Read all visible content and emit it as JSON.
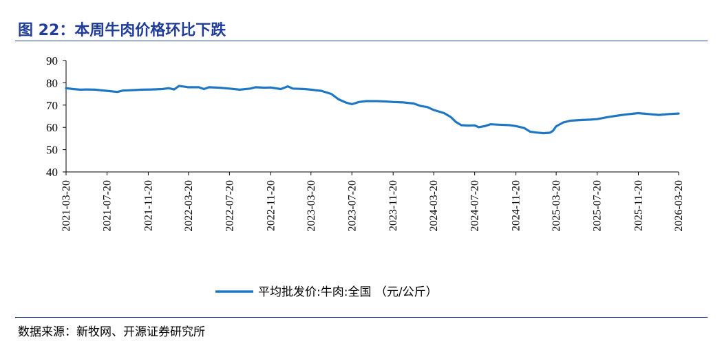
{
  "figure": {
    "title": "图 22：本周牛肉价格环比下跌",
    "source": "数据来源：新牧网、开源证券研究所"
  },
  "chart_data": {
    "type": "line",
    "title": "",
    "xlabel": "",
    "ylabel": "",
    "ylim": [
      40,
      90
    ],
    "yticks": [
      40,
      50,
      60,
      70,
      80,
      90
    ],
    "xlim": [
      "2021-03-20",
      "2026-03-20"
    ],
    "xticks": [
      "2021-03-20",
      "2021-07-20",
      "2021-11-20",
      "2022-03-20",
      "2022-07-20",
      "2022-11-20",
      "2023-03-20",
      "2023-07-20",
      "2023-11-20",
      "2024-03-20",
      "2024-07-20",
      "2024-11-20",
      "2025-03-20",
      "2025-07-20",
      "2025-11-20",
      "2026-03-20"
    ],
    "grid": false,
    "legend_position": "bottom",
    "color": "#1f77c4",
    "series": [
      {
        "name": "平均批发价:牛肉:全国  （元/公斤）",
        "points": [
          [
            "2021-03-20",
            77.6
          ],
          [
            "2021-04-10",
            77.2
          ],
          [
            "2021-05-01",
            76.9
          ],
          [
            "2021-05-20",
            77.0
          ],
          [
            "2021-06-15",
            76.9
          ],
          [
            "2021-07-20",
            76.4
          ],
          [
            "2021-08-20",
            75.9
          ],
          [
            "2021-09-05",
            76.5
          ],
          [
            "2021-10-01",
            76.7
          ],
          [
            "2021-11-01",
            76.9
          ],
          [
            "2021-12-01",
            77.0
          ],
          [
            "2022-01-01",
            77.2
          ],
          [
            "2022-01-20",
            77.6
          ],
          [
            "2022-02-05",
            77.0
          ],
          [
            "2022-02-20",
            78.6
          ],
          [
            "2022-03-20",
            78.0
          ],
          [
            "2022-04-20",
            78.0
          ],
          [
            "2022-05-05",
            77.2
          ],
          [
            "2022-05-20",
            78.0
          ],
          [
            "2022-06-20",
            77.8
          ],
          [
            "2022-07-20",
            77.4
          ],
          [
            "2022-08-20",
            76.9
          ],
          [
            "2022-09-20",
            77.4
          ],
          [
            "2022-10-05",
            78.0
          ],
          [
            "2022-11-01",
            77.8
          ],
          [
            "2022-11-20",
            77.9
          ],
          [
            "2022-12-20",
            77.2
          ],
          [
            "2023-01-10",
            78.4
          ],
          [
            "2023-01-25",
            77.4
          ],
          [
            "2023-03-01",
            77.2
          ],
          [
            "2023-03-20",
            76.9
          ],
          [
            "2023-04-20",
            76.4
          ],
          [
            "2023-05-20",
            75.0
          ],
          [
            "2023-06-10",
            72.6
          ],
          [
            "2023-07-01",
            71.2
          ],
          [
            "2023-07-20",
            70.4
          ],
          [
            "2023-08-10",
            71.4
          ],
          [
            "2023-09-01",
            71.8
          ],
          [
            "2023-10-01",
            71.8
          ],
          [
            "2023-11-01",
            71.6
          ],
          [
            "2023-11-20",
            71.4
          ],
          [
            "2023-12-20",
            71.2
          ],
          [
            "2024-01-20",
            70.7
          ],
          [
            "2024-02-10",
            69.6
          ],
          [
            "2024-03-01",
            69.1
          ],
          [
            "2024-03-20",
            67.8
          ],
          [
            "2024-04-20",
            66.4
          ],
          [
            "2024-05-10",
            64.6
          ],
          [
            "2024-05-25",
            62.4
          ],
          [
            "2024-06-10",
            61.0
          ],
          [
            "2024-07-01",
            60.8
          ],
          [
            "2024-07-20",
            60.9
          ],
          [
            "2024-08-01",
            60.1
          ],
          [
            "2024-08-20",
            60.6
          ],
          [
            "2024-09-05",
            61.4
          ],
          [
            "2024-10-01",
            61.2
          ],
          [
            "2024-11-01",
            61.0
          ],
          [
            "2024-11-20",
            60.6
          ],
          [
            "2024-12-15",
            59.7
          ],
          [
            "2025-01-01",
            58.1
          ],
          [
            "2025-01-20",
            57.7
          ],
          [
            "2025-02-10",
            57.4
          ],
          [
            "2025-03-01",
            57.6
          ],
          [
            "2025-03-10",
            58.4
          ],
          [
            "2025-03-20",
            60.5
          ],
          [
            "2025-04-10",
            62.2
          ],
          [
            "2025-05-01",
            63.0
          ],
          [
            "2025-06-01",
            63.3
          ],
          [
            "2025-07-01",
            63.5
          ],
          [
            "2025-07-20",
            63.7
          ],
          [
            "2025-08-20",
            64.6
          ],
          [
            "2025-09-20",
            65.3
          ],
          [
            "2025-10-20",
            65.9
          ],
          [
            "2025-11-20",
            66.4
          ],
          [
            "2025-12-20",
            66.0
          ],
          [
            "2026-01-20",
            65.6
          ],
          [
            "2026-02-20",
            66.0
          ],
          [
            "2026-03-20",
            66.2
          ]
        ]
      }
    ]
  }
}
